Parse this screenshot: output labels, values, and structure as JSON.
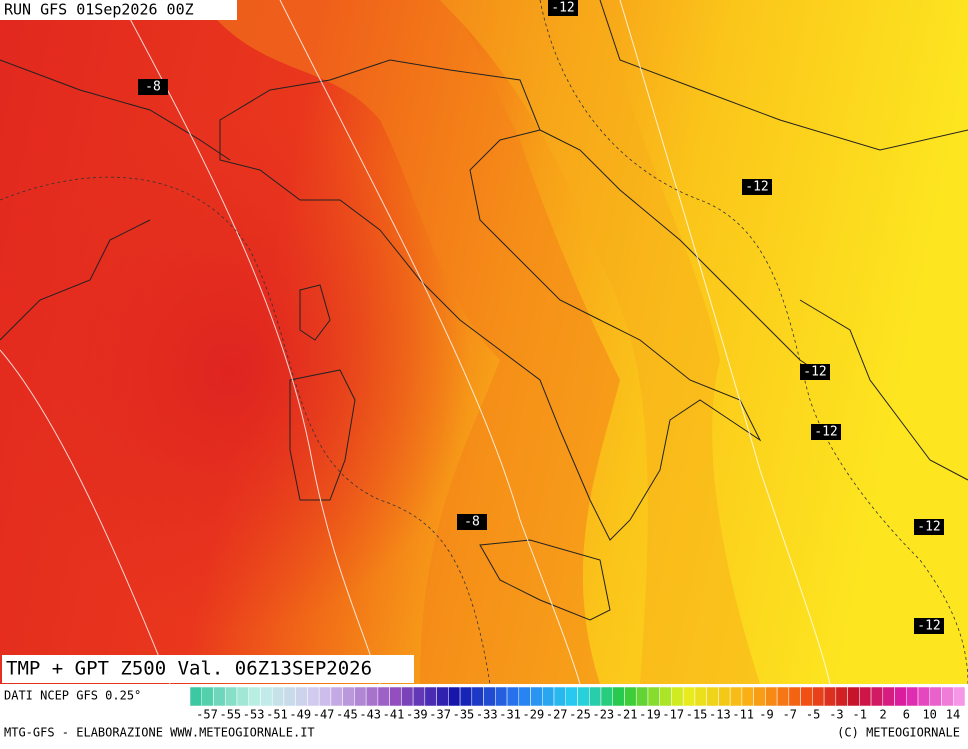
{
  "header": {
    "run": "RUN GFS 01Sep2026 00Z"
  },
  "contour_labels": [
    "-12",
    "-8",
    "-12",
    "-12",
    "-12",
    "-8",
    "-12",
    "-12"
  ],
  "product": {
    "title": "TMP + GPT Z500 Val. 06Z13SEP2026",
    "source": "DATI NCEP GFS 0.25°"
  },
  "legend": {
    "labels": [
      "-57",
      "-55",
      "-53",
      "-51",
      "-49",
      "-47",
      "-45",
      "-43",
      "-41",
      "-39",
      "-37",
      "-35",
      "-33",
      "-31",
      "-29",
      "-27",
      "-25",
      "-23",
      "-21",
      "-19",
      "-17",
      "-15",
      "-13",
      "-11",
      "-9",
      "-7",
      "-5",
      "-3",
      "-1",
      "2",
      "6",
      "10",
      "14"
    ]
  },
  "footer": {
    "left": "MTG-GFS - ELABORAZIONE WWW.METEOGIORNALE.IT",
    "right": "(C) METEOGIORNALE"
  }
}
